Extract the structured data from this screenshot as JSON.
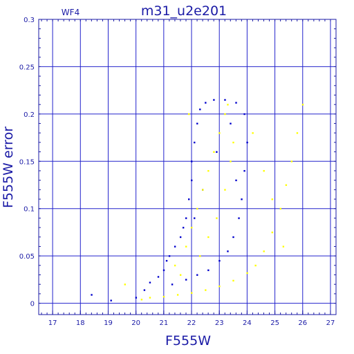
{
  "chart_data": {
    "type": "scatter",
    "title": "m31_u2e201",
    "panel_label": "WF4",
    "xlabel": "F555W",
    "ylabel": "F555W error",
    "xlim": [
      16.5,
      27.2
    ],
    "ylim": [
      -0.012,
      0.3
    ],
    "grid": true,
    "x_ticks": [
      17,
      18,
      19,
      20,
      21,
      22,
      23,
      24,
      25,
      26,
      27
    ],
    "x_tick_labels": [
      "17",
      "18",
      "19",
      "20",
      "21",
      "22",
      "23",
      "24",
      "25",
      "26",
      "27"
    ],
    "y_ticks": [
      0,
      0.05,
      0.1,
      0.15,
      0.2,
      0.25,
      0.3
    ],
    "y_tick_labels": [
      "0",
      "0.05",
      "0.1",
      "0.15",
      "0.2",
      "0.25",
      "0.3"
    ],
    "colors": {
      "axes": "#1a1aa6",
      "grid": "#2222cc",
      "series_all": "#0000cc",
      "series_selected": "#ffff00"
    },
    "series": [
      {
        "color": "#0000cc",
        "points": [
          [
            18.4,
            0.009
          ],
          [
            19.1,
            0.003
          ],
          [
            20.0,
            0.006
          ],
          [
            20.3,
            0.014
          ],
          [
            20.5,
            0.022
          ],
          [
            20.8,
            0.028
          ],
          [
            21.0,
            0.035
          ],
          [
            21.1,
            0.045
          ],
          [
            21.2,
            0.05
          ],
          [
            21.4,
            0.06
          ],
          [
            21.6,
            0.07
          ],
          [
            21.7,
            0.08
          ],
          [
            21.8,
            0.09
          ],
          [
            21.9,
            0.11
          ],
          [
            22.0,
            0.13
          ],
          [
            22.0,
            0.15
          ],
          [
            22.1,
            0.17
          ],
          [
            22.2,
            0.19
          ],
          [
            22.3,
            0.205
          ],
          [
            22.5,
            0.212
          ],
          [
            22.8,
            0.215
          ],
          [
            23.2,
            0.215
          ],
          [
            23.6,
            0.212
          ],
          [
            23.9,
            0.2
          ],
          [
            24.0,
            0.17
          ],
          [
            23.9,
            0.14
          ],
          [
            23.8,
            0.11
          ],
          [
            23.7,
            0.09
          ],
          [
            23.5,
            0.07
          ],
          [
            23.3,
            0.055
          ],
          [
            23.0,
            0.045
          ],
          [
            22.6,
            0.035
          ],
          [
            22.2,
            0.03
          ],
          [
            21.8,
            0.025
          ],
          [
            21.3,
            0.02
          ],
          [
            22.4,
            0.12
          ],
          [
            22.9,
            0.16
          ],
          [
            23.4,
            0.19
          ],
          [
            22.1,
            0.09
          ],
          [
            23.6,
            0.13
          ]
        ]
      },
      {
        "color": "#ffff00",
        "points": [
          [
            19.6,
            0.02
          ],
          [
            20.2,
            0.004
          ],
          [
            20.5,
            0.006
          ],
          [
            21.0,
            0.007
          ],
          [
            21.5,
            0.009
          ],
          [
            22.0,
            0.011
          ],
          [
            22.5,
            0.014
          ],
          [
            23.0,
            0.018
          ],
          [
            23.5,
            0.024
          ],
          [
            24.0,
            0.032
          ],
          [
            24.3,
            0.04
          ],
          [
            24.6,
            0.055
          ],
          [
            24.9,
            0.075
          ],
          [
            25.2,
            0.1
          ],
          [
            25.4,
            0.125
          ],
          [
            25.6,
            0.15
          ],
          [
            25.8,
            0.18
          ],
          [
            26.0,
            0.21
          ],
          [
            21.4,
            0.04
          ],
          [
            21.8,
            0.06
          ],
          [
            22.0,
            0.08
          ],
          [
            22.2,
            0.1
          ],
          [
            22.4,
            0.12
          ],
          [
            22.6,
            0.14
          ],
          [
            22.8,
            0.16
          ],
          [
            23.0,
            0.18
          ],
          [
            23.2,
            0.2
          ],
          [
            23.3,
            0.21
          ],
          [
            22.9,
            0.09
          ],
          [
            23.2,
            0.12
          ],
          [
            23.4,
            0.15
          ],
          [
            23.5,
            0.17
          ],
          [
            22.6,
            0.07
          ],
          [
            22.3,
            0.05
          ],
          [
            21.6,
            0.03
          ],
          [
            24.2,
            0.18
          ],
          [
            24.6,
            0.14
          ],
          [
            24.9,
            0.11
          ],
          [
            25.3,
            0.06
          ],
          [
            21.9,
            0.2
          ]
        ]
      }
    ]
  }
}
